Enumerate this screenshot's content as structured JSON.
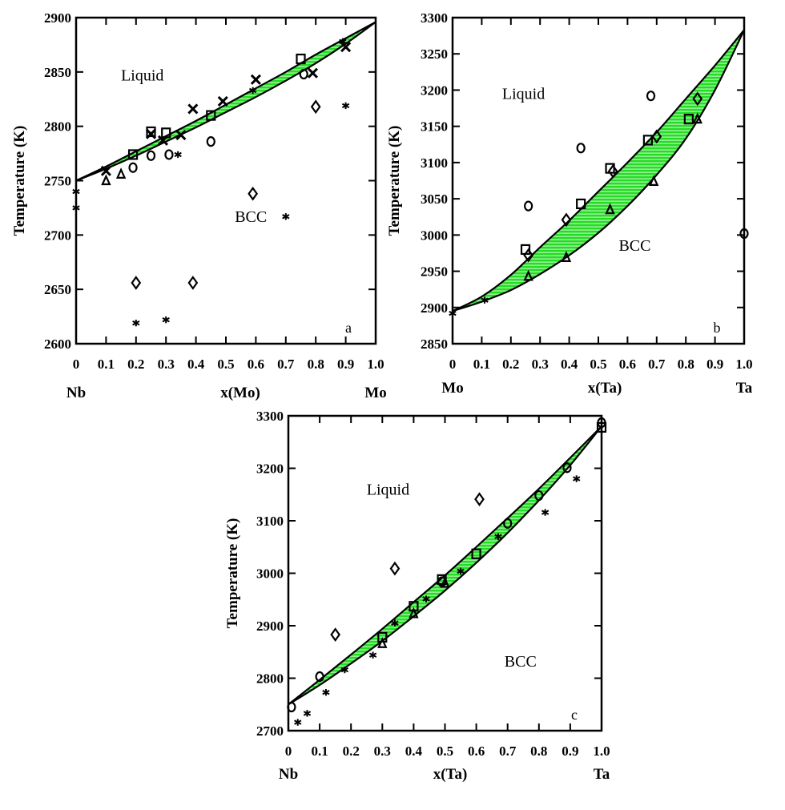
{
  "colors": {
    "band_fill": "#22dd22",
    "band_stripe": "#ffffff",
    "ink": "#000000"
  },
  "chart_data": [
    {
      "type": "scatter",
      "panel_label": "a",
      "xlabel": "x(Mo)",
      "ylabel": "Temperature (K)",
      "xlim": [
        0,
        1
      ],
      "ylim": [
        2600,
        2900
      ],
      "x_ticks": [
        "0",
        "0.1",
        "0.2",
        "0.3",
        "0.4",
        "0.5",
        "0.6",
        "0.7",
        "0.8",
        "0.9",
        "1.0"
      ],
      "y_ticks": [
        "2600",
        "2650",
        "2700",
        "2750",
        "2800",
        "2850",
        "2900"
      ],
      "left_element": "Nb",
      "right_element": "Mo",
      "regions": [
        {
          "label": "Liquid",
          "at": [
            0.15,
            2842
          ]
        },
        {
          "label": "BCC",
          "at": [
            0.53,
            2712
          ]
        }
      ],
      "liquidus": [
        [
          0,
          2750
        ],
        [
          0.1,
          2763
        ],
        [
          0.2,
          2777
        ],
        [
          0.3,
          2791
        ],
        [
          0.4,
          2805
        ],
        [
          0.5,
          2820
        ],
        [
          0.6,
          2835
        ],
        [
          0.7,
          2850
        ],
        [
          0.8,
          2866
        ],
        [
          0.9,
          2881
        ],
        [
          1.0,
          2896
        ]
      ],
      "solidus": [
        [
          0,
          2750
        ],
        [
          0.1,
          2761
        ],
        [
          0.2,
          2773
        ],
        [
          0.3,
          2786
        ],
        [
          0.4,
          2799
        ],
        [
          0.5,
          2813
        ],
        [
          0.6,
          2827
        ],
        [
          0.7,
          2842
        ],
        [
          0.8,
          2858
        ],
        [
          0.9,
          2876
        ],
        [
          1.0,
          2896
        ]
      ],
      "points": [
        {
          "m": "x",
          "x": 0.1,
          "y": 2759
        },
        {
          "m": "x",
          "x": 0.25,
          "y": 2793
        },
        {
          "m": "x",
          "x": 0.29,
          "y": 2787
        },
        {
          "m": "x",
          "x": 0.35,
          "y": 2792
        },
        {
          "m": "x",
          "x": 0.39,
          "y": 2816
        },
        {
          "m": "x",
          "x": 0.49,
          "y": 2823
        },
        {
          "m": "x",
          "x": 0.6,
          "y": 2843
        },
        {
          "m": "x",
          "x": 0.79,
          "y": 2849
        },
        {
          "m": "x",
          "x": 0.9,
          "y": 2873
        },
        {
          "m": "square",
          "x": 0.19,
          "y": 2774
        },
        {
          "m": "square",
          "x": 0.25,
          "y": 2795
        },
        {
          "m": "square",
          "x": 0.3,
          "y": 2794
        },
        {
          "m": "square",
          "x": 0.45,
          "y": 2810
        },
        {
          "m": "square",
          "x": 0.75,
          "y": 2862
        },
        {
          "m": "circle",
          "x": 0.19,
          "y": 2762
        },
        {
          "m": "circle",
          "x": 0.25,
          "y": 2773
        },
        {
          "m": "circle",
          "x": 0.31,
          "y": 2774
        },
        {
          "m": "circle",
          "x": 0.45,
          "y": 2786
        },
        {
          "m": "circle",
          "x": 0.76,
          "y": 2848
        },
        {
          "m": "triangle",
          "x": 0.1,
          "y": 2750
        },
        {
          "m": "triangle",
          "x": 0.15,
          "y": 2756
        },
        {
          "m": "diamond",
          "x": 0.2,
          "y": 2656
        },
        {
          "m": "diamond",
          "x": 0.39,
          "y": 2656
        },
        {
          "m": "diamond",
          "x": 0.59,
          "y": 2738
        },
        {
          "m": "diamond",
          "x": 0.8,
          "y": 2818
        },
        {
          "m": "star",
          "x": 0.2,
          "y": 2619
        },
        {
          "m": "star",
          "x": 0.3,
          "y": 2622
        },
        {
          "m": "star",
          "x": 0.7,
          "y": 2717
        },
        {
          "m": "star",
          "x": 0.9,
          "y": 2819
        },
        {
          "m": "star",
          "x": 0.0,
          "y": 2740
        },
        {
          "m": "star",
          "x": 0.0,
          "y": 2725
        },
        {
          "m": "star",
          "x": 0.34,
          "y": 2774
        },
        {
          "m": "star",
          "x": 0.59,
          "y": 2833
        },
        {
          "m": "star",
          "x": 0.89,
          "y": 2878
        }
      ]
    },
    {
      "type": "scatter",
      "panel_label": "b",
      "xlabel": "x(Ta)",
      "ylabel": "Temperature (K)",
      "xlim": [
        0,
        1
      ],
      "ylim": [
        2850,
        3300
      ],
      "x_ticks": [
        "0",
        "0.1",
        "0.2",
        "0.3",
        "0.4",
        "0.5",
        "0.6",
        "0.7",
        "0.8",
        "0.9",
        "1.0"
      ],
      "y_ticks": [
        "2850",
        "2900",
        "2950",
        "3000",
        "3050",
        "3100",
        "3150",
        "3200",
        "3250",
        "3300"
      ],
      "left_element": "Mo",
      "right_element": "Ta",
      "regions": [
        {
          "label": "Liquid",
          "at": [
            0.17,
            3188
          ]
        },
        {
          "label": "BCC",
          "at": [
            0.57,
            2978
          ]
        }
      ],
      "liquidus": [
        [
          0,
          2895
        ],
        [
          0.1,
          2915
        ],
        [
          0.2,
          2945
        ],
        [
          0.3,
          2983
        ],
        [
          0.4,
          3020
        ],
        [
          0.5,
          3060
        ],
        [
          0.6,
          3100
        ],
        [
          0.7,
          3142
        ],
        [
          0.8,
          3188
        ],
        [
          0.9,
          3234
        ],
        [
          1.0,
          3283
        ]
      ],
      "solidus": [
        [
          0,
          2895
        ],
        [
          0.1,
          2908
        ],
        [
          0.2,
          2924
        ],
        [
          0.3,
          2946
        ],
        [
          0.4,
          2972
        ],
        [
          0.5,
          3003
        ],
        [
          0.6,
          3040
        ],
        [
          0.7,
          3083
        ],
        [
          0.8,
          3133
        ],
        [
          0.9,
          3200
        ],
        [
          1.0,
          3283
        ]
      ],
      "points": [
        {
          "m": "circle",
          "x": 0.26,
          "y": 3040
        },
        {
          "m": "circle",
          "x": 0.44,
          "y": 3120
        },
        {
          "m": "circle",
          "x": 0.68,
          "y": 3192
        },
        {
          "m": "circle",
          "x": 1.0,
          "y": 3002
        },
        {
          "m": "square",
          "x": 0.25,
          "y": 2980
        },
        {
          "m": "square",
          "x": 0.44,
          "y": 3043
        },
        {
          "m": "square",
          "x": 0.54,
          "y": 3092
        },
        {
          "m": "square",
          "x": 0.67,
          "y": 3131
        },
        {
          "m": "square",
          "x": 0.81,
          "y": 3160
        },
        {
          "m": "diamond",
          "x": 0.26,
          "y": 2972
        },
        {
          "m": "diamond",
          "x": 0.39,
          "y": 3021
        },
        {
          "m": "diamond",
          "x": 0.55,
          "y": 3088
        },
        {
          "m": "diamond",
          "x": 0.7,
          "y": 3136
        },
        {
          "m": "diamond",
          "x": 0.84,
          "y": 3188
        },
        {
          "m": "triangle",
          "x": 0.26,
          "y": 2943
        },
        {
          "m": "triangle",
          "x": 0.39,
          "y": 2969
        },
        {
          "m": "triangle",
          "x": 0.54,
          "y": 3035
        },
        {
          "m": "triangle",
          "x": 0.69,
          "y": 3074
        },
        {
          "m": "triangle",
          "x": 0.84,
          "y": 3160
        },
        {
          "m": "star",
          "x": 0.11,
          "y": 2910
        },
        {
          "m": "star",
          "x": 0.0,
          "y": 2892
        }
      ]
    },
    {
      "type": "scatter",
      "panel_label": "c",
      "xlabel": "x(Ta)",
      "ylabel": "Temperature (K)",
      "xlim": [
        0,
        1
      ],
      "ylim": [
        2700,
        3300
      ],
      "x_ticks": [
        "0",
        "0.1",
        "0.2",
        "0.3",
        "0.4",
        "0.5",
        "0.6",
        "0.7",
        "0.8",
        "0.9",
        "1.0"
      ],
      "y_ticks": [
        "2700",
        "2800",
        "2900",
        "3000",
        "3100",
        "3200",
        "3300"
      ],
      "left_element": "Nb",
      "right_element": "Ta",
      "regions": [
        {
          "label": "Liquid",
          "at": [
            0.25,
            3150
          ]
        },
        {
          "label": "BCC",
          "at": [
            0.69,
            2822
          ]
        }
      ],
      "liquidus": [
        [
          0,
          2750
        ],
        [
          0.1,
          2797
        ],
        [
          0.2,
          2845
        ],
        [
          0.3,
          2894
        ],
        [
          0.4,
          2945
        ],
        [
          0.5,
          2996
        ],
        [
          0.6,
          3050
        ],
        [
          0.7,
          3105
        ],
        [
          0.8,
          3161
        ],
        [
          0.9,
          3220
        ],
        [
          1.0,
          3280
        ]
      ],
      "solidus": [
        [
          0,
          2750
        ],
        [
          0.1,
          2787
        ],
        [
          0.2,
          2828
        ],
        [
          0.3,
          2871
        ],
        [
          0.4,
          2918
        ],
        [
          0.5,
          2967
        ],
        [
          0.6,
          3020
        ],
        [
          0.7,
          3077
        ],
        [
          0.8,
          3139
        ],
        [
          0.9,
          3206
        ],
        [
          1.0,
          3280
        ]
      ],
      "points": [
        {
          "m": "circle",
          "x": 0.01,
          "y": 2745
        },
        {
          "m": "circle",
          "x": 0.1,
          "y": 2803
        },
        {
          "m": "circle",
          "x": 0.49,
          "y": 2984
        },
        {
          "m": "circle",
          "x": 0.7,
          "y": 3095
        },
        {
          "m": "circle",
          "x": 0.8,
          "y": 3148
        },
        {
          "m": "circle",
          "x": 0.89,
          "y": 3201
        },
        {
          "m": "circle",
          "x": 1.0,
          "y": 3287
        },
        {
          "m": "diamond",
          "x": 0.15,
          "y": 2883
        },
        {
          "m": "diamond",
          "x": 0.34,
          "y": 3009
        },
        {
          "m": "diamond",
          "x": 0.61,
          "y": 3141
        },
        {
          "m": "square",
          "x": 0.3,
          "y": 2878
        },
        {
          "m": "square",
          "x": 0.4,
          "y": 2937
        },
        {
          "m": "square",
          "x": 0.49,
          "y": 2988
        },
        {
          "m": "square",
          "x": 0.6,
          "y": 3037
        },
        {
          "m": "square",
          "x": 1.0,
          "y": 3278
        },
        {
          "m": "triangle",
          "x": 0.3,
          "y": 2866
        },
        {
          "m": "triangle",
          "x": 0.4,
          "y": 2923
        },
        {
          "m": "triangle",
          "x": 0.5,
          "y": 2981
        },
        {
          "m": "star",
          "x": 0.03,
          "y": 2716
        },
        {
          "m": "star",
          "x": 0.06,
          "y": 2733
        },
        {
          "m": "star",
          "x": 0.12,
          "y": 2773
        },
        {
          "m": "star",
          "x": 0.18,
          "y": 2816
        },
        {
          "m": "star",
          "x": 0.27,
          "y": 2844
        },
        {
          "m": "star",
          "x": 0.34,
          "y": 2905
        },
        {
          "m": "star",
          "x": 0.44,
          "y": 2951
        },
        {
          "m": "star",
          "x": 0.55,
          "y": 3004
        },
        {
          "m": "star",
          "x": 0.67,
          "y": 3070
        },
        {
          "m": "star",
          "x": 0.82,
          "y": 3116
        },
        {
          "m": "star",
          "x": 0.92,
          "y": 3180
        }
      ]
    }
  ]
}
